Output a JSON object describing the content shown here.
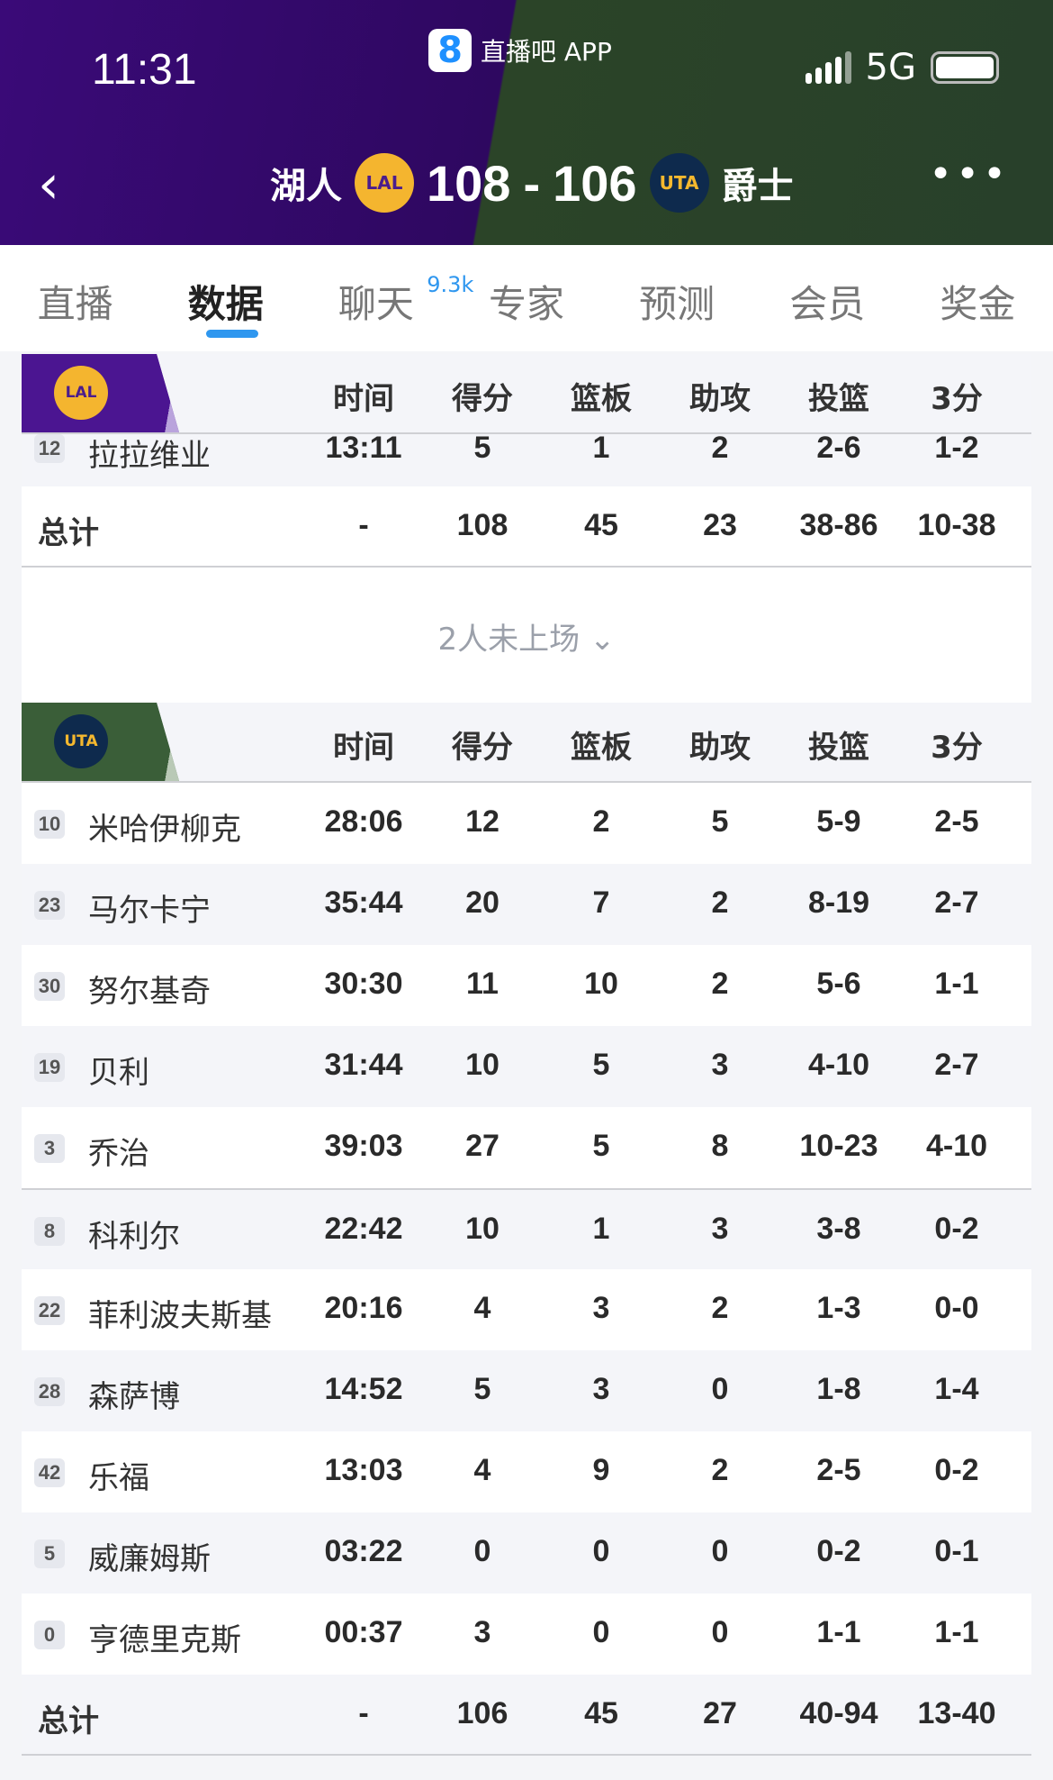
{
  "status": {
    "time": "11:31",
    "app": "直播吧 APP",
    "app_logo": "8",
    "network": "5G"
  },
  "match": {
    "home": "湖人",
    "home_abbr": "LAL",
    "home_score": "108",
    "sep": "-",
    "away_score": "106",
    "away_abbr": "UTA",
    "away": "爵士"
  },
  "tabs": [
    {
      "label": "直播"
    },
    {
      "label": "数据",
      "active": true
    },
    {
      "label": "聊天",
      "badge": "9.3k"
    },
    {
      "label": "专家"
    },
    {
      "label": "预测"
    },
    {
      "label": "会员"
    },
    {
      "label": "奖金"
    }
  ],
  "columns": [
    "时间",
    "得分",
    "篮板",
    "助攻",
    "投篮",
    "3分"
  ],
  "lal": {
    "abbr": "LAL",
    "color": "#4b1d8c",
    "rows": [
      {
        "num": "12",
        "name": "拉拉维业",
        "stats": [
          "13:11",
          "5",
          "1",
          "2",
          "2-6",
          "1-2"
        ]
      }
    ],
    "total": {
      "label": "总计",
      "stats": [
        "-",
        "108",
        "45",
        "23",
        "38-86",
        "10-38"
      ]
    },
    "dnp": "2人未上场"
  },
  "uta": {
    "abbr": "UTA",
    "color": "#3a5e38",
    "rows": [
      {
        "num": "10",
        "name": "米哈伊柳克",
        "stats": [
          "28:06",
          "12",
          "2",
          "5",
          "5-9",
          "2-5"
        ]
      },
      {
        "num": "23",
        "name": "马尔卡宁",
        "stats": [
          "35:44",
          "20",
          "7",
          "2",
          "8-19",
          "2-7"
        ]
      },
      {
        "num": "30",
        "name": "努尔基奇",
        "stats": [
          "30:30",
          "11",
          "10",
          "2",
          "5-6",
          "1-1"
        ]
      },
      {
        "num": "19",
        "name": "贝利",
        "stats": [
          "31:44",
          "10",
          "5",
          "3",
          "4-10",
          "2-7"
        ]
      },
      {
        "num": "3",
        "name": "乔治",
        "stats": [
          "39:03",
          "27",
          "5",
          "8",
          "10-23",
          "4-10"
        ]
      },
      {
        "num": "8",
        "name": "科利尔",
        "stats": [
          "22:42",
          "10",
          "1",
          "3",
          "3-8",
          "0-2"
        ]
      },
      {
        "num": "22",
        "name": "菲利波夫斯基",
        "stats": [
          "20:16",
          "4",
          "3",
          "2",
          "1-3",
          "0-0"
        ]
      },
      {
        "num": "28",
        "name": "森萨博",
        "stats": [
          "14:52",
          "5",
          "3",
          "0",
          "1-8",
          "1-4"
        ]
      },
      {
        "num": "42",
        "name": "乐福",
        "stats": [
          "13:03",
          "4",
          "9",
          "2",
          "2-5",
          "0-2"
        ]
      },
      {
        "num": "5",
        "name": "威廉姆斯",
        "stats": [
          "03:22",
          "0",
          "0",
          "0",
          "0-2",
          "0-1"
        ]
      },
      {
        "num": "0",
        "name": "亨德里克斯",
        "stats": [
          "00:37",
          "3",
          "0",
          "0",
          "1-1",
          "1-1"
        ]
      }
    ],
    "total": {
      "label": "总计",
      "stats": [
        "-",
        "106",
        "45",
        "27",
        "40-94",
        "13-40"
      ]
    }
  }
}
